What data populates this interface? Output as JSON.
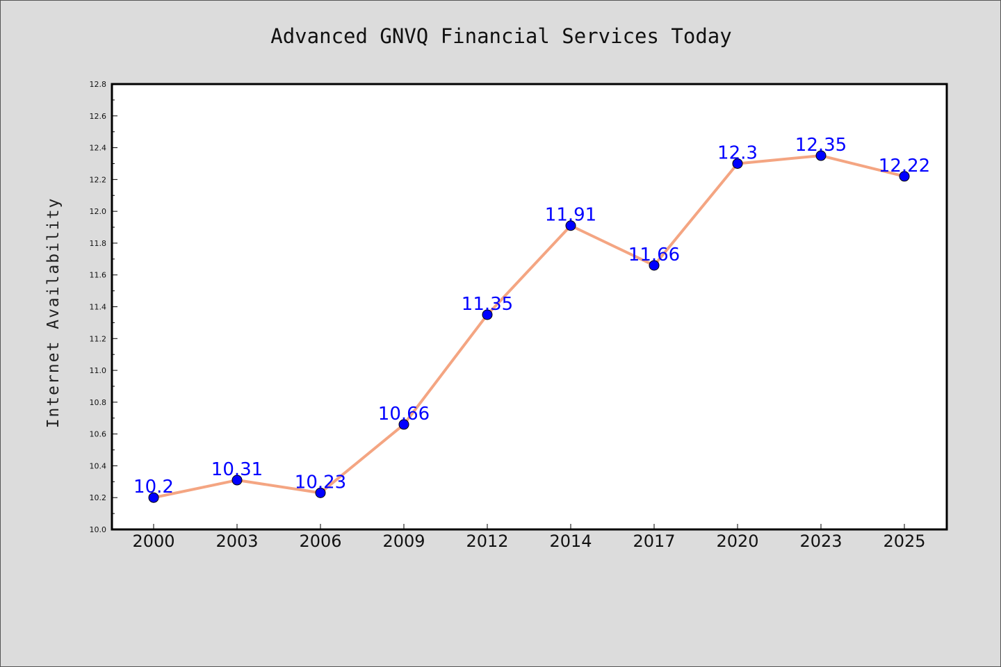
{
  "chart_data": {
    "type": "line",
    "title": "Advanced GNVQ Financial Services Today",
    "xlabel": "",
    "ylabel": "Internet Availability",
    "categories": [
      "2000",
      "2003",
      "2006",
      "2009",
      "2012",
      "2014",
      "2017",
      "2020",
      "2023",
      "2025"
    ],
    "series": [
      {
        "values": [
          10.2,
          10.31,
          10.23,
          10.66,
          11.35,
          11.91,
          11.66,
          12.3,
          12.35,
          12.22
        ],
        "labels": [
          "10.2",
          "10.31",
          "10.23",
          "10.66",
          "11.35",
          "11.91",
          "11.66",
          "12.3",
          "12.35",
          "12.22"
        ],
        "line_color": "#f4a582",
        "marker_color": "#0000ff"
      }
    ],
    "ylim": [
      10.0,
      12.8
    ],
    "yticks": [
      "10.0",
      "10.2",
      "10.4",
      "10.6",
      "10.8",
      "11.0",
      "11.2",
      "11.4",
      "11.6",
      "11.8",
      "12.0",
      "12.2",
      "12.4",
      "12.6",
      "12.8"
    ],
    "grid": false,
    "legend": "none",
    "colors": {
      "background": "#dcdcdc",
      "plot_background": "#ffffff",
      "data_label": "#0000ff"
    }
  }
}
